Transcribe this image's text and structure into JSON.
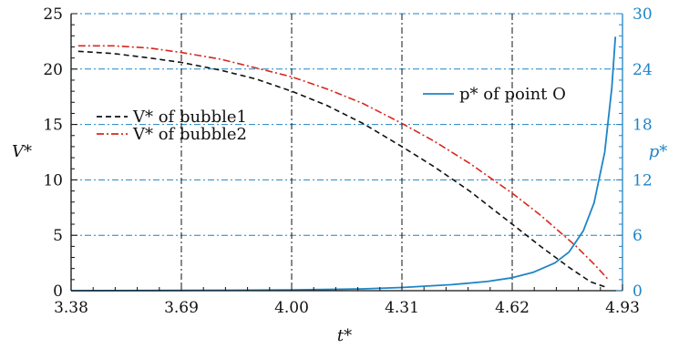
{
  "chart_data": {
    "type": "line",
    "title": "",
    "xlabel": "t*",
    "ylabel_left": "V*",
    "ylabel_right": "p*",
    "xlim": [
      3.38,
      4.93
    ],
    "ylim_left": [
      0,
      25
    ],
    "ylim_right": [
      0,
      30
    ],
    "x_ticks": [
      "3.38",
      "3.69",
      "4.00",
      "4.31",
      "4.62",
      "4.93"
    ],
    "y_ticks_left": [
      "0",
      "5",
      "10",
      "15",
      "20",
      "25"
    ],
    "y_ticks_right": [
      "0",
      "6",
      "12",
      "18",
      "24",
      "30"
    ],
    "grid": "on",
    "legend": [
      {
        "label": "V* of bubble1",
        "series": 0,
        "placement": "left"
      },
      {
        "label": "V* of bubble2",
        "series": 1,
        "placement": "left"
      },
      {
        "label": "p* of point O",
        "series": 2,
        "placement": "top-right"
      }
    ],
    "series": [
      {
        "name": "V* of bubble1",
        "axis": "left",
        "color": "#111111",
        "dash": "dashed",
        "x": [
          3.4,
          3.5,
          3.6,
          3.69,
          3.8,
          3.9,
          4.0,
          4.1,
          4.2,
          4.31,
          4.4,
          4.5,
          4.62,
          4.7,
          4.78,
          4.84,
          4.88
        ],
        "y": [
          21.6,
          21.4,
          21.0,
          20.6,
          19.9,
          19.1,
          18.0,
          16.7,
          15.1,
          13.0,
          11.2,
          9.0,
          6.0,
          4.0,
          2.1,
          0.8,
          0.35
        ]
      },
      {
        "name": "V* of bubble2",
        "axis": "left",
        "color": "#d6281e",
        "dash": "dashdot",
        "x": [
          3.4,
          3.5,
          3.6,
          3.69,
          3.8,
          3.9,
          4.0,
          4.1,
          4.2,
          4.31,
          4.4,
          4.5,
          4.62,
          4.7,
          4.8,
          4.85,
          4.89
        ],
        "y": [
          22.1,
          22.1,
          21.9,
          21.5,
          20.9,
          20.1,
          19.3,
          18.2,
          16.9,
          15.1,
          13.5,
          11.5,
          8.8,
          6.8,
          4.0,
          2.4,
          1.0
        ]
      },
      {
        "name": "p* of point O",
        "axis": "right",
        "color": "#1f84c6",
        "dash": "solid",
        "x": [
          3.38,
          3.69,
          4.0,
          4.2,
          4.31,
          4.45,
          4.55,
          4.62,
          4.68,
          4.74,
          4.78,
          4.82,
          4.85,
          4.88,
          4.9,
          4.91
        ],
        "y": [
          0.0,
          0.03,
          0.08,
          0.2,
          0.35,
          0.65,
          1.0,
          1.4,
          2.0,
          3.0,
          4.2,
          6.5,
          9.5,
          15.0,
          22.0,
          27.5
        ]
      }
    ]
  }
}
